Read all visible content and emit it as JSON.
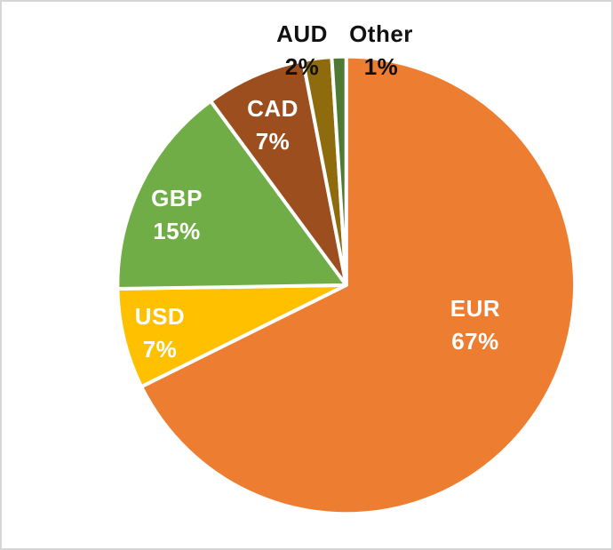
{
  "chart_data": {
    "type": "pie",
    "title": "",
    "unit": "%",
    "direction": "clockwise",
    "start_angle_deg": 0,
    "separator_color": "#FFFFFF",
    "background_color": "#FFFFFF",
    "frame_border_color": "#D6D6D6",
    "slices": [
      {
        "label": "EUR",
        "value": 67,
        "pct_label": "67%",
        "color": "#ED7D31",
        "label_color": "#FFFFFF",
        "label_position": "inside"
      },
      {
        "label": "USD",
        "value": 7,
        "pct_label": "7%",
        "color": "#FFC000",
        "label_color": "#FFFFFF",
        "label_position": "inside"
      },
      {
        "label": "GBP",
        "value": 15,
        "pct_label": "15%",
        "color": "#70AD47",
        "label_color": "#FFFFFF",
        "label_position": "inside"
      },
      {
        "label": "CAD",
        "value": 7,
        "pct_label": "7%",
        "color": "#9C4E1E",
        "label_color": "#FFFFFF",
        "label_position": "inside"
      },
      {
        "label": "AUD",
        "value": 2,
        "pct_label": "2%",
        "color": "#8E6C0D",
        "label_color": "#111111",
        "label_position": "outside"
      },
      {
        "label": "Other",
        "value": 1,
        "pct_label": "1%",
        "color": "#4E7A33",
        "label_color": "#111111",
        "label_position": "outside"
      }
    ]
  }
}
